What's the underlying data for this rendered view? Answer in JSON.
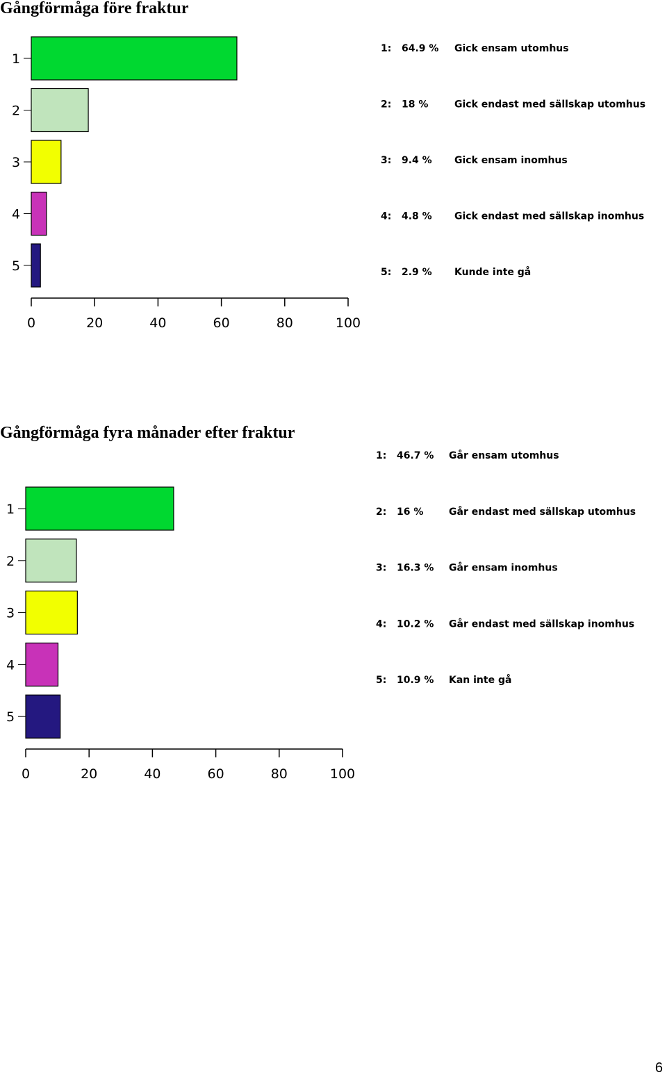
{
  "chart_data": [
    {
      "type": "bar",
      "orientation": "horizontal",
      "title": "Gångförmåga före fraktur",
      "categories": [
        "1",
        "2",
        "3",
        "4",
        "5"
      ],
      "values": [
        64.9,
        18,
        9.4,
        4.8,
        2.9
      ],
      "colors": [
        "#00d830",
        "#c0e4bc",
        "#f2ff00",
        "#c832b8",
        "#241880"
      ],
      "xlim": [
        0,
        100
      ],
      "xticks": [
        "0",
        "20",
        "40",
        "60",
        "80",
        "100"
      ],
      "grid": false,
      "legend": [
        {
          "num": "1:",
          "pct": "64.9 %",
          "label": "Gick ensam utomhus"
        },
        {
          "num": "2:",
          "pct": "18 %",
          "label": "Gick endast med sällskap utomhus"
        },
        {
          "num": "3:",
          "pct": "9.4 %",
          "label": "Gick ensam inomhus"
        },
        {
          "num": "4:",
          "pct": "4.8 %",
          "label": "Gick endast med sällskap inomhus"
        },
        {
          "num": "5:",
          "pct": "2.9 %",
          "label": "Kunde inte gå"
        }
      ]
    },
    {
      "type": "bar",
      "orientation": "horizontal",
      "title": "Gångförmåga fyra månader efter fraktur",
      "categories": [
        "1",
        "2",
        "3",
        "4",
        "5"
      ],
      "values": [
        46.7,
        16,
        16.3,
        10.2,
        10.9
      ],
      "colors": [
        "#00d830",
        "#c0e4bc",
        "#f2ff00",
        "#c832b8",
        "#241880"
      ],
      "xlim": [
        0,
        100
      ],
      "xticks": [
        "0",
        "20",
        "40",
        "60",
        "80",
        "100"
      ],
      "grid": false,
      "legend": [
        {
          "num": "1:",
          "pct": "46.7 %",
          "label": "Går ensam utomhus"
        },
        {
          "num": "2:",
          "pct": "16 %",
          "label": "Går endast med sällskap utomhus"
        },
        {
          "num": "3:",
          "pct": "16.3 %",
          "label": "Går ensam inomhus"
        },
        {
          "num": "4:",
          "pct": "10.2 %",
          "label": "Går endast med sällskap inomhus"
        },
        {
          "num": "5:",
          "pct": "10.9 %",
          "label": "Kan inte gå"
        }
      ]
    }
  ],
  "page_number": "6"
}
